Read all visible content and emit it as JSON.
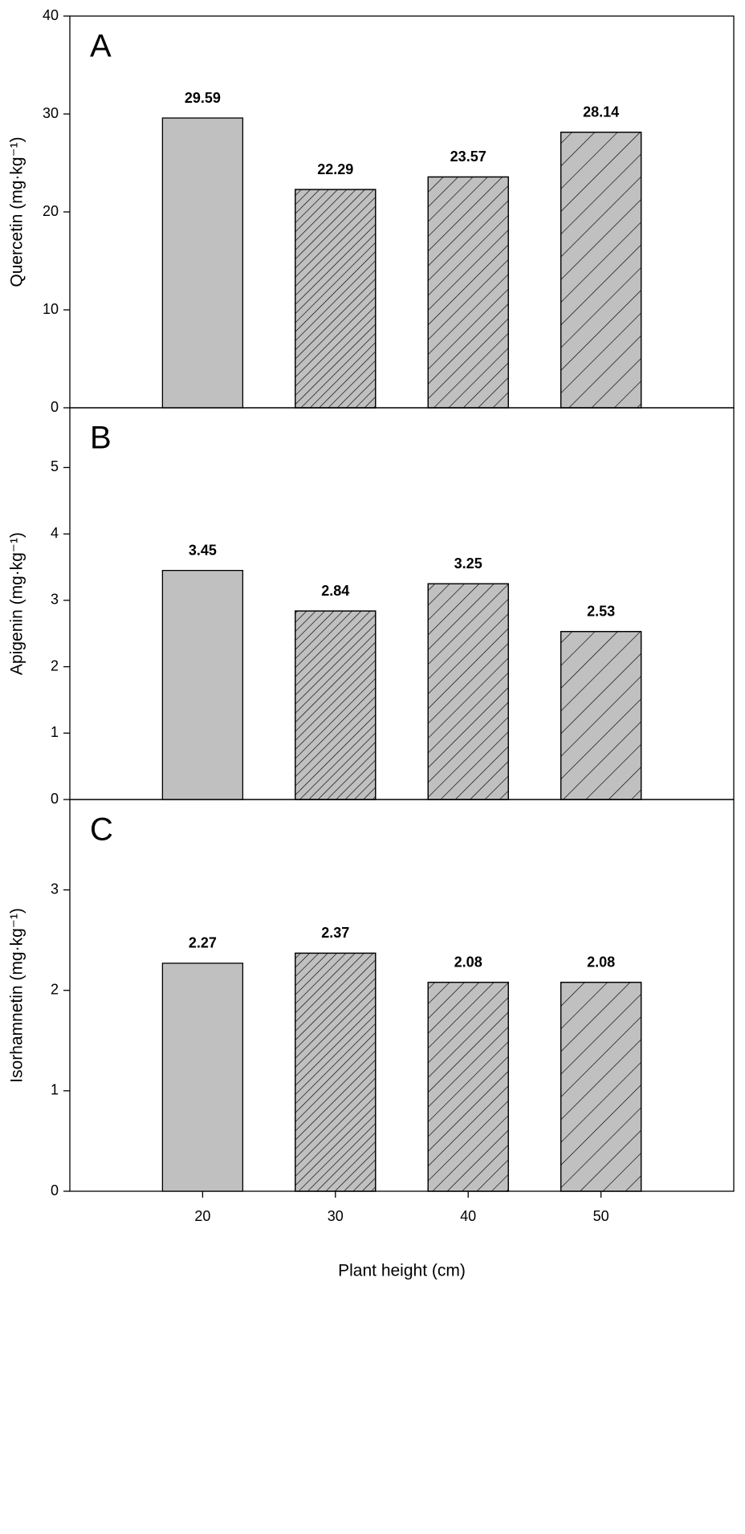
{
  "chart_data": [
    {
      "type": "bar",
      "label": "A",
      "ylabel": "Quercetin (mg·kg⁻¹)",
      "values": [
        29.59,
        22.29,
        23.57,
        28.14
      ],
      "color": "#c0c0c0",
      "ylim": [
        0,
        40
      ],
      "yticks": [
        0,
        10,
        20,
        30,
        40
      ]
    },
    {
      "type": "bar",
      "label": "B",
      "ylabel": "Apigenin (mg·kg⁻¹)",
      "values": [
        3.45,
        2.84,
        3.25,
        2.53
      ],
      "color": "#c0c0c0",
      "ylim": [
        0,
        5.9
      ],
      "yticks": [
        0,
        1,
        2,
        3,
        4,
        5
      ]
    },
    {
      "type": "bar",
      "label": "C",
      "ylabel": "Isorhamnetin (mg·kg⁻¹)",
      "xlabel": "Plant height (cm)",
      "categories": [
        "20",
        "30",
        "40",
        "50"
      ],
      "values": [
        2.27,
        2.37,
        2.08,
        2.08
      ],
      "color": "#c0c0c0",
      "ylim": [
        0,
        3.9
      ],
      "yticks": [
        0,
        1,
        2,
        3
      ]
    }
  ]
}
